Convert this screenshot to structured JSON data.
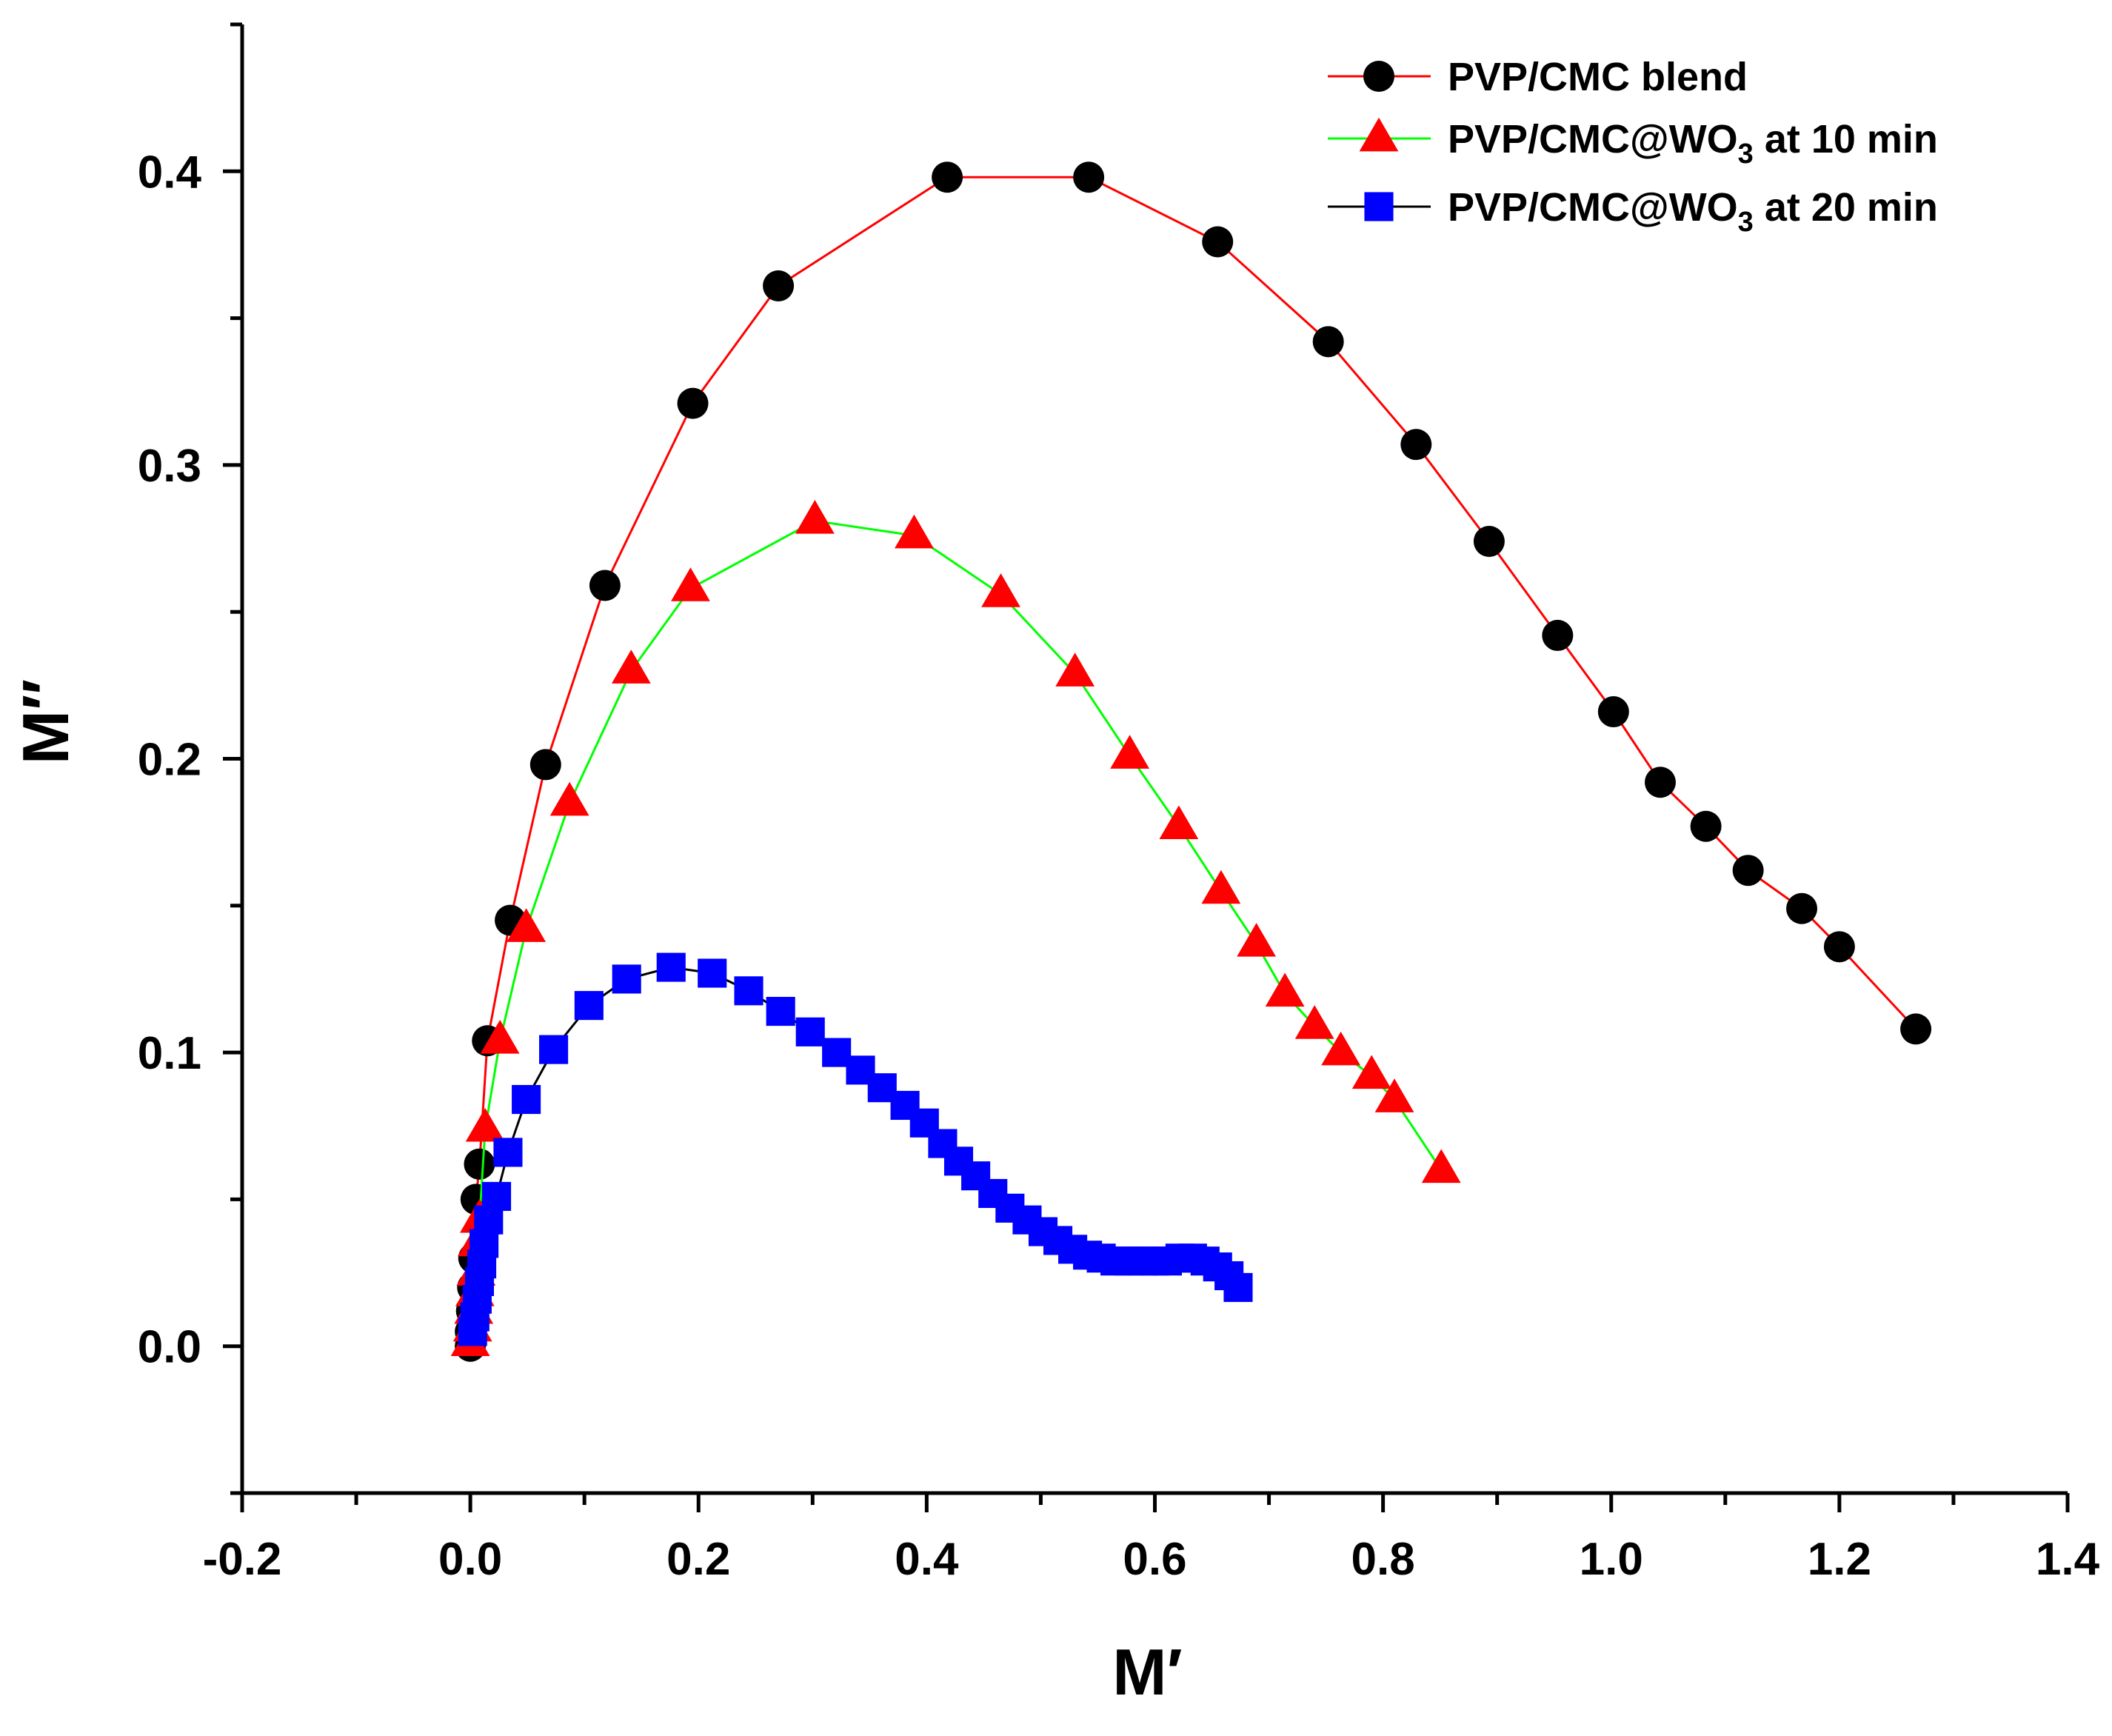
{
  "chart_data": {
    "type": "scatter",
    "xlabel": "M′",
    "ylabel": "M″",
    "xlim": [
      -0.2,
      1.4
    ],
    "ylim": [
      -0.05,
      0.45
    ],
    "x_ticks": [
      -0.2,
      0.0,
      0.2,
      0.4,
      0.6,
      0.8,
      1.0,
      1.2,
      1.4
    ],
    "x_tick_labels": [
      "-0.2",
      "0.0",
      "0.2",
      "0.4",
      "0.6",
      "0.8",
      "1.0",
      "1.2",
      "1.4"
    ],
    "y_ticks": [
      0.0,
      0.1,
      0.2,
      0.3,
      0.4
    ],
    "y_tick_labels": [
      "0.0",
      "0.1",
      "0.2",
      "0.3",
      "0.4"
    ],
    "grid": false,
    "legend_position": "top-right",
    "series": [
      {
        "name": "PVP/CMC blend",
        "name_main": "PVP/CMC blend",
        "name_sub": "",
        "name_tail": "",
        "marker": "circle",
        "marker_color": "#000000",
        "line_color": "#ff0000",
        "x": [
          0.0,
          0.0,
          0.001,
          0.002,
          0.003,
          0.005,
          0.008,
          0.015,
          0.035,
          0.066,
          0.118,
          0.195,
          0.27,
          0.418,
          0.542,
          0.655,
          0.752,
          0.829,
          0.893,
          0.953,
          1.002,
          1.043,
          1.083,
          1.12,
          1.167,
          1.2,
          1.267
        ],
        "y": [
          0.0,
          0.005,
          0.012,
          0.02,
          0.03,
          0.05,
          0.062,
          0.104,
          0.145,
          0.198,
          0.259,
          0.321,
          0.361,
          0.398,
          0.398,
          0.376,
          0.342,
          0.307,
          0.274,
          0.242,
          0.216,
          0.192,
          0.177,
          0.162,
          0.149,
          0.136,
          0.108
        ]
      },
      {
        "name": "PVP/CMC@WO3 at 10 min",
        "name_main": "PVP/CMC@WO",
        "name_sub": "3",
        "name_tail": " at 10 min",
        "marker": "triangle",
        "marker_color": "#ff0000",
        "line_color": "#00ff00",
        "x": [
          0.0,
          0.002,
          0.003,
          0.004,
          0.005,
          0.006,
          0.008,
          0.013,
          0.026,
          0.049,
          0.087,
          0.141,
          0.193,
          0.302,
          0.389,
          0.465,
          0.53,
          0.578,
          0.621,
          0.658,
          0.689,
          0.714,
          0.74,
          0.763,
          0.79,
          0.81,
          0.851
        ],
        "y": [
          0.001,
          0.006,
          0.012,
          0.018,
          0.025,
          0.035,
          0.043,
          0.074,
          0.104,
          0.142,
          0.185,
          0.23,
          0.258,
          0.281,
          0.276,
          0.256,
          0.229,
          0.201,
          0.177,
          0.155,
          0.137,
          0.12,
          0.109,
          0.1,
          0.092,
          0.084,
          0.06
        ]
      },
      {
        "name": "PVP/CMC@WO3 at 20 min",
        "name_main": "PVP/CMC@WO",
        "name_sub": "3",
        "name_tail": " at 20 min",
        "marker": "square",
        "marker_color": "#0000ff",
        "line_color": "#000000",
        "x": [
          0.002,
          0.004,
          0.006,
          0.008,
          0.01,
          0.012,
          0.016,
          0.023,
          0.033,
          0.049,
          0.073,
          0.104,
          0.137,
          0.176,
          0.212,
          0.244,
          0.272,
          0.298,
          0.321,
          0.342,
          0.361,
          0.381,
          0.398,
          0.414,
          0.428,
          0.443,
          0.458,
          0.473,
          0.488,
          0.502,
          0.515,
          0.528,
          0.541,
          0.553,
          0.565,
          0.577,
          0.589,
          0.6,
          0.611,
          0.622,
          0.633,
          0.644,
          0.655,
          0.665,
          0.673
        ],
        "y": [
          0.005,
          0.01,
          0.016,
          0.022,
          0.028,
          0.035,
          0.043,
          0.051,
          0.066,
          0.084,
          0.101,
          0.116,
          0.125,
          0.129,
          0.127,
          0.121,
          0.114,
          0.107,
          0.1,
          0.094,
          0.088,
          0.082,
          0.076,
          0.069,
          0.063,
          0.058,
          0.052,
          0.047,
          0.043,
          0.039,
          0.036,
          0.033,
          0.031,
          0.03,
          0.029,
          0.029,
          0.029,
          0.029,
          0.029,
          0.03,
          0.03,
          0.029,
          0.027,
          0.024,
          0.02
        ]
      }
    ]
  }
}
